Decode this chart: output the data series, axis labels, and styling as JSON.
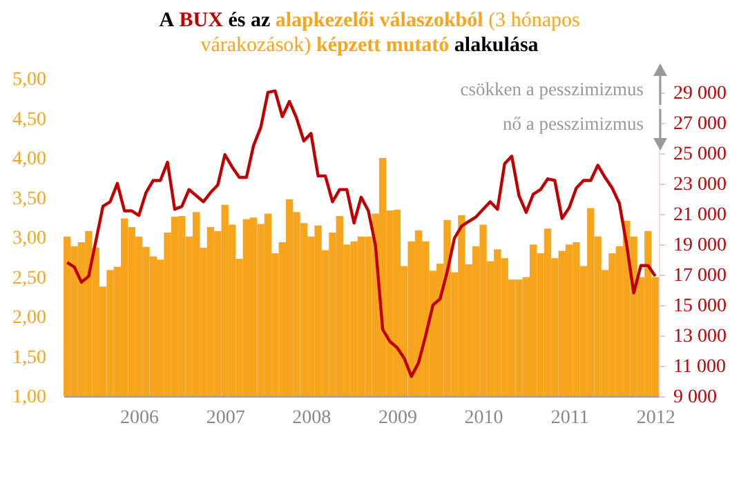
{
  "chart_data": {
    "type": "bar",
    "title": "A BUX és az alapkezelői válaszokból (3 hónapos várakozások) képzett mutató alakulása",
    "annotations": [
      "csökken a pesszimizmus",
      "nő a pesszimizmus"
    ],
    "x": [
      2005.167,
      2005.25,
      2005.333,
      2005.417,
      2005.5,
      2005.583,
      2005.667,
      2005.75,
      2005.833,
      2005.917,
      2006,
      2006.083,
      2006.167,
      2006.25,
      2006.333,
      2006.417,
      2006.5,
      2006.583,
      2006.667,
      2006.75,
      2006.833,
      2006.917,
      2007,
      2007.083,
      2007.167,
      2007.25,
      2007.333,
      2007.417,
      2007.5,
      2007.583,
      2007.667,
      2007.75,
      2007.833,
      2007.917,
      2008,
      2008.083,
      2008.167,
      2008.25,
      2008.333,
      2008.417,
      2008.5,
      2008.583,
      2008.667,
      2008.75,
      2008.833,
      2008.917,
      2009,
      2009.083,
      2009.167,
      2009.25,
      2009.333,
      2009.417,
      2009.5,
      2009.583,
      2009.667,
      2009.75,
      2009.833,
      2009.917,
      2010,
      2010.083,
      2010.167,
      2010.25,
      2010.333,
      2010.417,
      2010.5,
      2010.583,
      2010.667,
      2010.75,
      2010.833,
      2010.917,
      2011,
      2011.083,
      2011.167,
      2011.25,
      2011.333,
      2011.417,
      2011.5,
      2011.583,
      2011.667,
      2011.75,
      2011.833,
      2011.917,
      2012
    ],
    "xlim": [
      2005.125,
      2012.042
    ],
    "xticks": [
      2006,
      2007,
      2008,
      2009,
      2010,
      2011,
      2012
    ],
    "ylim": [
      1,
      5
    ],
    "yticks": [
      {
        "value": 1,
        "label": "1,00"
      },
      {
        "value": 1.5,
        "label": "1,50"
      },
      {
        "value": 2,
        "label": "2,00"
      },
      {
        "value": 2.5,
        "label": "2,50"
      },
      {
        "value": 3,
        "label": "3,00"
      },
      {
        "value": 3.5,
        "label": "3,50"
      },
      {
        "value": 4,
        "label": "4,00"
      },
      {
        "value": 4.5,
        "label": "4,50"
      },
      {
        "value": 5,
        "label": "5,00"
      }
    ],
    "y2lim": [
      9000,
      29900
    ],
    "y2ticks": [
      {
        "value": 9000,
        "label": "9 000"
      },
      {
        "value": 11000,
        "label": "11 000"
      },
      {
        "value": 13000,
        "label": "13 000"
      },
      {
        "value": 15000,
        "label": "15 000"
      },
      {
        "value": 17000,
        "label": "17 000"
      },
      {
        "value": 19000,
        "label": "19 000"
      },
      {
        "value": 21000,
        "label": "21 000"
      },
      {
        "value": 23000,
        "label": "23 000"
      },
      {
        "value": 25000,
        "label": "25 000"
      },
      {
        "value": 27000,
        "label": "27 000"
      },
      {
        "value": 29000,
        "label": "29 000"
      }
    ],
    "series": [
      {
        "color": "#f7a51c",
        "values": [
          3.01,
          2.89,
          2.94,
          3.08,
          2.87,
          2.38,
          2.59,
          2.63,
          3.24,
          3.13,
          3.01,
          2.88,
          2.76,
          2.72,
          3.06,
          3.26,
          3.27,
          3.01,
          3.32,
          2.87,
          3.13,
          3.08,
          3.41,
          3.16,
          2.73,
          3.23,
          3.25,
          3.17,
          3.3,
          2.8,
          2.94,
          3.48,
          3.32,
          3.18,
          3.01,
          3.15,
          2.84,
          3.06,
          3.27,
          2.91,
          2.95,
          3.01,
          3.01,
          3.3,
          4.0,
          3.34,
          3.35,
          2.64,
          2.95,
          3.09,
          2.95,
          2.58,
          2.67,
          3.22,
          2.56,
          3.28,
          2.66,
          2.89,
          3.16,
          2.7,
          2.85,
          2.74,
          2.47,
          2.47,
          2.5,
          2.91,
          2.8,
          3.11,
          2.74,
          2.83,
          2.91,
          2.94,
          2.64,
          3.37,
          3.01,
          2.59,
          2.8,
          2.89,
          3.21,
          3.01,
          2.5,
          3.08,
          2.5
        ]
      },
      {
        "type": "line",
        "axis": "y2",
        "color": "#c00000",
        "values": [
          17800,
          17500,
          16500,
          16900,
          19200,
          21500,
          21800,
          23000,
          21200,
          21200,
          20900,
          22400,
          23200,
          23200,
          24400,
          21300,
          21500,
          22600,
          22200,
          21800,
          22400,
          22900,
          24900,
          24100,
          23400,
          23400,
          25500,
          26700,
          29000,
          29100,
          27400,
          28400,
          27300,
          25800,
          26300,
          23500,
          23500,
          21800,
          22600,
          22600,
          20400,
          22100,
          21200,
          18900,
          13400,
          12600,
          12200,
          11500,
          10300,
          11200,
          13000,
          15000,
          15400,
          17200,
          19400,
          20200,
          20500,
          20800,
          21300,
          21800,
          21300,
          24300,
          24800,
          22200,
          21100,
          22300,
          22600,
          23300,
          23200,
          20700,
          21400,
          22700,
          23200,
          23200,
          24200,
          23400,
          22700,
          21700,
          19000,
          15800,
          17600,
          17600,
          16900
        ]
      }
    ]
  }
}
